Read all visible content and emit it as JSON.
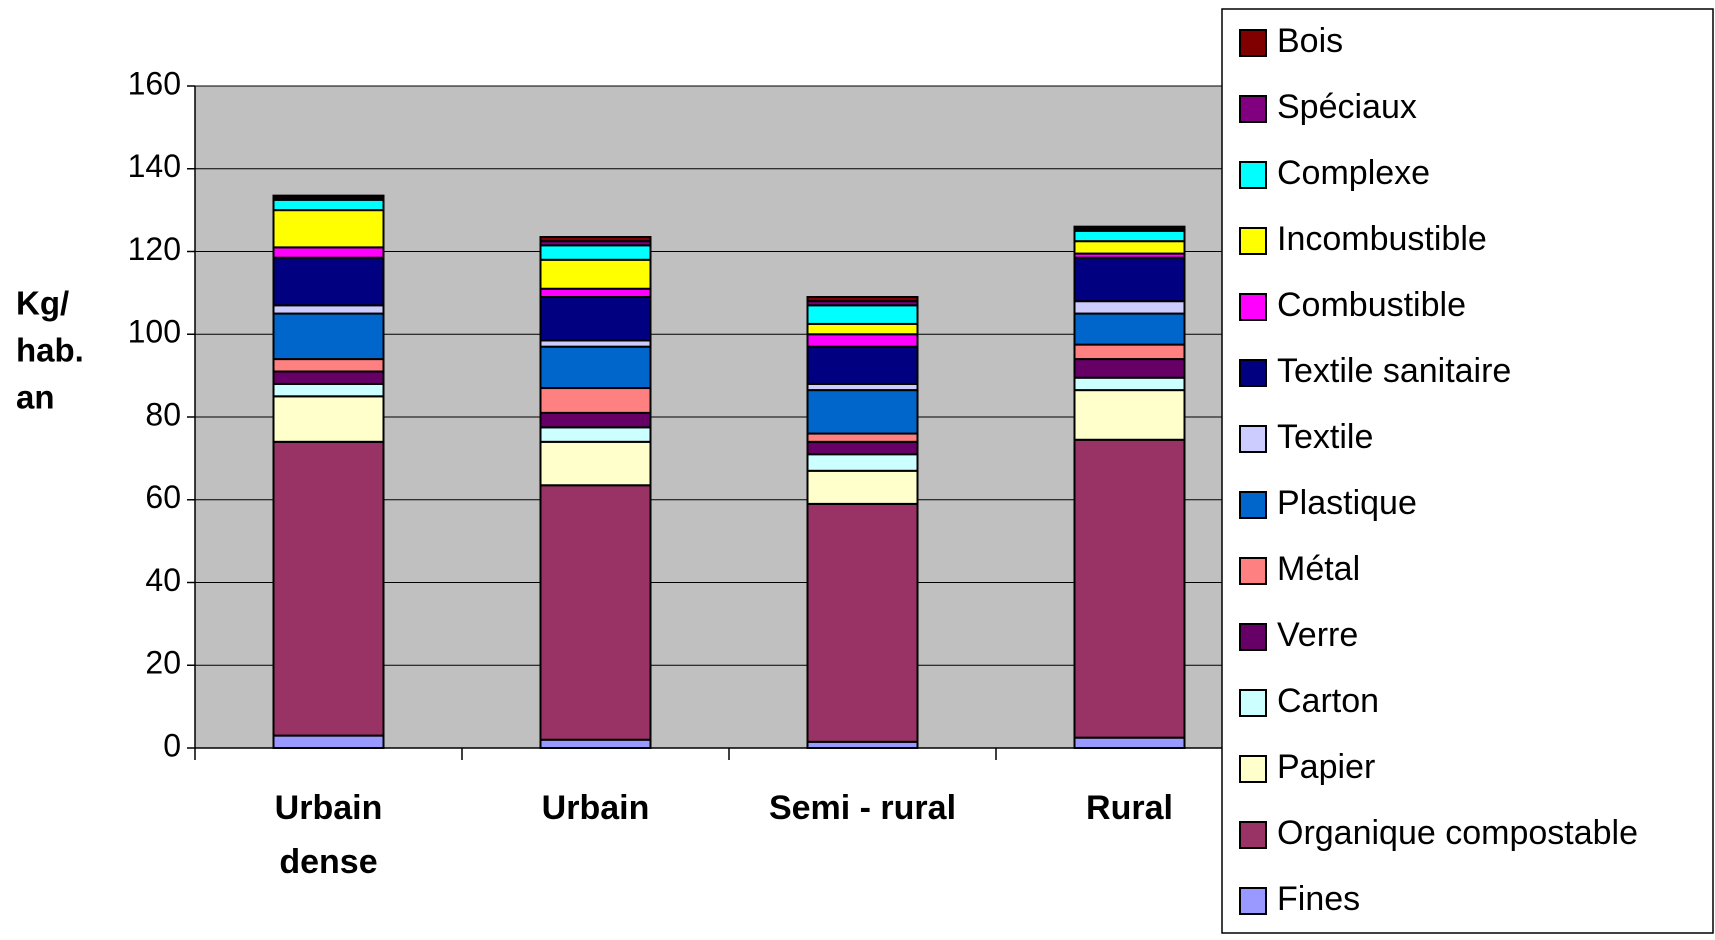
{
  "chart_data": {
    "type": "stacked_bar",
    "y_label": [
      "Kg/",
      "hab.",
      "an"
    ],
    "categories": [
      [
        "Urbain",
        "dense"
      ],
      [
        "Urbain"
      ],
      [
        "Semi - rural"
      ],
      [
        "Rural"
      ]
    ],
    "ylim": [
      0,
      160
    ],
    "yticks": [
      0,
      20,
      40,
      60,
      80,
      100,
      120,
      140,
      160
    ],
    "grid": true,
    "series": [
      {
        "name": "Fines",
        "color": "#9999ff",
        "values": [
          3,
          2,
          1.5,
          2.5
        ]
      },
      {
        "name": "Organique compostable",
        "color": "#993366",
        "values": [
          71,
          61.5,
          57.5,
          72
        ]
      },
      {
        "name": "Papier",
        "color": "#ffffcc",
        "values": [
          11,
          10.5,
          8,
          12
        ]
      },
      {
        "name": "Carton",
        "color": "#ccffff",
        "values": [
          3,
          3.5,
          4,
          3
        ]
      },
      {
        "name": "Verre",
        "color": "#660066",
        "values": [
          3,
          3.5,
          3,
          4.5
        ]
      },
      {
        "name": "Métal",
        "color": "#ff8080",
        "values": [
          3,
          6,
          2,
          3.5
        ]
      },
      {
        "name": "Plastique",
        "color": "#0066cc",
        "values": [
          11,
          10,
          10.5,
          7.5
        ]
      },
      {
        "name": "Textile",
        "color": "#ccccff",
        "values": [
          2,
          1.5,
          1.5,
          3
        ]
      },
      {
        "name": "Textile sanitaire",
        "color": "#000080",
        "values": [
          11.5,
          10.5,
          9,
          10.5
        ]
      },
      {
        "name": "Combustible",
        "color": "#ff00ff",
        "values": [
          2.5,
          2,
          3,
          1
        ]
      },
      {
        "name": "Incombustible",
        "color": "#ffff00",
        "values": [
          9,
          7,
          2.5,
          3
        ]
      },
      {
        "name": "Complexe",
        "color": "#00ffff",
        "values": [
          2.5,
          3.5,
          4.5,
          2.5
        ]
      },
      {
        "name": "Spéciaux",
        "color": "#800080",
        "values": [
          0.5,
          1,
          1,
          0.5
        ]
      },
      {
        "name": "Bois",
        "color": "#800000",
        "values": [
          0.5,
          1,
          1,
          0.5
        ]
      }
    ]
  }
}
